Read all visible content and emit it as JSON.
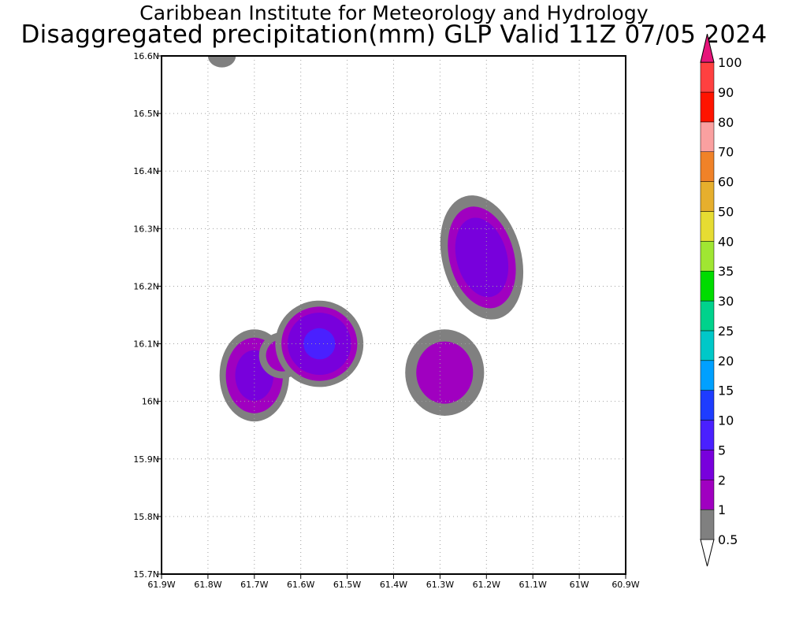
{
  "title": "Caribbean Institute for Meteorology and Hydrology",
  "subtitle": "Disaggregated precipitation(mm) GLP Valid 11Z 07/05 2024",
  "chart_data": {
    "type": "heatmap",
    "title": "Caribbean Institute for Meteorology and Hydrology",
    "subtitle": "Disaggregated precipitation(mm) GLP Valid 11Z 07/05 2024",
    "xlabel": "",
    "ylabel": "",
    "units": "mm",
    "xlim": [
      -61.9,
      -60.9
    ],
    "ylim": [
      15.7,
      16.6
    ],
    "grid": true,
    "x_ticks": [
      -61.9,
      -61.8,
      -61.7,
      -61.6,
      -61.5,
      -61.4,
      -61.3,
      -61.2,
      -61.1,
      -61.0,
      -60.9
    ],
    "x_tick_labels": [
      "61.9W",
      "61.8W",
      "61.7W",
      "61.6W",
      "61.5W",
      "61.4W",
      "61.3W",
      "61.2W",
      "61.1W",
      "61W",
      "60.9W"
    ],
    "y_ticks": [
      15.7,
      15.8,
      15.9,
      16.0,
      16.1,
      16.2,
      16.3,
      16.4,
      16.5,
      16.6
    ],
    "y_tick_labels": [
      "15.7N",
      "15.8N",
      "15.9N",
      "16N",
      "16.1N",
      "16.2N",
      "16.3N",
      "16.4N",
      "16.5N",
      "16.6N"
    ],
    "colorbar": {
      "placement": "right",
      "levels": [
        "0.5",
        "1",
        "2",
        "5",
        "10",
        "15",
        "20",
        "25",
        "30",
        "35",
        "40",
        "50",
        "60",
        "70",
        "80",
        "90",
        "100"
      ],
      "colors": [
        "#808080",
        "#a000c0",
        "#7800dc",
        "#4a20ff",
        "#1e3cff",
        "#00a0ff",
        "#00c8c8",
        "#00d28c",
        "#00dc00",
        "#a0e632",
        "#e6dc32",
        "#e6af2d",
        "#f08228",
        "#faa0a0",
        "#ff1400",
        "#ff4040",
        "#e6147a"
      ]
    },
    "features": [
      {
        "lon": -61.77,
        "lat": 16.6,
        "rx": 0.03,
        "ry": 0.02,
        "levels": [
          {
            "k": 0,
            "scale": 1
          }
        ]
      },
      {
        "lon": -61.7,
        "lat": 16.045,
        "rx": 0.075,
        "ry": 0.08,
        "levels": [
          {
            "k": 0,
            "scale": 1
          },
          {
            "k": 1,
            "scale": 0.82
          },
          {
            "k": 2,
            "scale": 0.55
          }
        ]
      },
      {
        "lon": -61.64,
        "lat": 16.08,
        "rx": 0.05,
        "ry": 0.04,
        "rot": -30,
        "levels": [
          {
            "k": 0,
            "scale": 1
          },
          {
            "k": 1,
            "scale": 0.7
          }
        ]
      },
      {
        "lon": -61.56,
        "lat": 16.1,
        "rx": 0.095,
        "ry": 0.075,
        "rot": 8,
        "levels": [
          {
            "k": 0,
            "scale": 1
          },
          {
            "k": 1,
            "scale": 0.86
          },
          {
            "k": 2,
            "scale": 0.72
          },
          {
            "k": 3,
            "scale": 0.36
          }
        ]
      },
      {
        "lon": -61.29,
        "lat": 16.05,
        "rx": 0.085,
        "ry": 0.075,
        "levels": [
          {
            "k": 0,
            "scale": 1
          },
          {
            "k": 1,
            "scale": 0.72
          }
        ]
      },
      {
        "lon": -61.21,
        "lat": 16.25,
        "rx": 0.085,
        "ry": 0.11,
        "rot": -15,
        "levels": [
          {
            "k": 0,
            "scale": 1
          },
          {
            "k": 1,
            "scale": 0.82
          },
          {
            "k": 2,
            "scale": 0.64
          }
        ]
      }
    ]
  }
}
